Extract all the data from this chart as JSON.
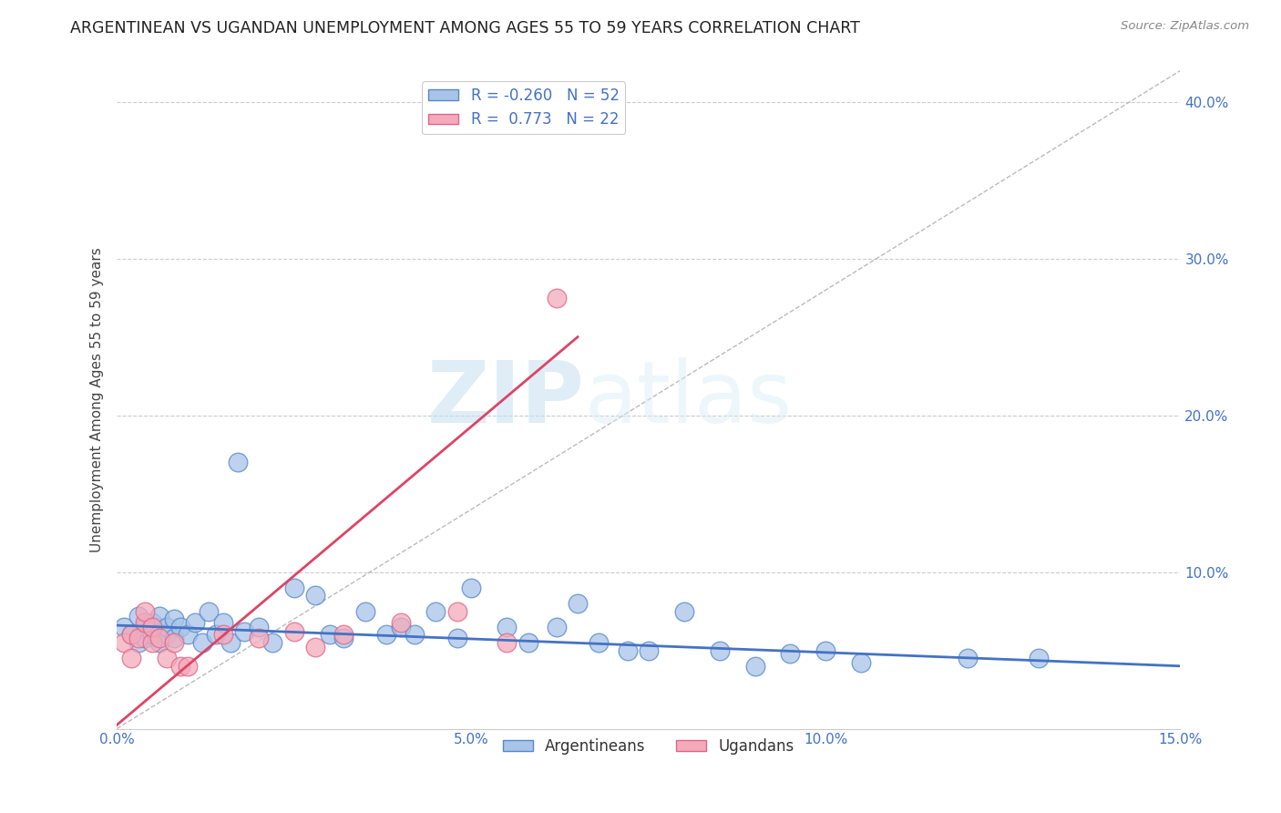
{
  "title": "ARGENTINEAN VS UGANDAN UNEMPLOYMENT AMONG AGES 55 TO 59 YEARS CORRELATION CHART",
  "source": "Source: ZipAtlas.com",
  "ylabel": "Unemployment Among Ages 55 to 59 years",
  "xlim": [
    0.0,
    0.15
  ],
  "ylim": [
    0.0,
    0.42
  ],
  "grid_color": "#cccccc",
  "background_color": "#ffffff",
  "diagonal_line_color": "#bbbbbb",
  "blue_R": -0.26,
  "blue_N": 52,
  "pink_R": 0.773,
  "pink_N": 22,
  "blue_scatter_color": "#a8c4e8",
  "pink_scatter_color": "#f4aabb",
  "blue_edge_color": "#5588cc",
  "pink_edge_color": "#dd6688",
  "blue_line_color": "#4472c4",
  "pink_line_color": "#dd4466",
  "tick_color": "#4472c4",
  "legend_label_blue": "Argentineans",
  "legend_label_pink": "Ugandans",
  "watermark_zip": "ZIP",
  "watermark_atlas": "atlas",
  "blue_scatter_x": [
    0.001,
    0.002,
    0.003,
    0.003,
    0.004,
    0.004,
    0.005,
    0.005,
    0.006,
    0.006,
    0.007,
    0.007,
    0.008,
    0.008,
    0.009,
    0.01,
    0.011,
    0.012,
    0.013,
    0.014,
    0.015,
    0.016,
    0.017,
    0.018,
    0.02,
    0.022,
    0.025,
    0.028,
    0.03,
    0.032,
    0.035,
    0.038,
    0.04,
    0.042,
    0.045,
    0.048,
    0.05,
    0.055,
    0.058,
    0.062,
    0.065,
    0.068,
    0.072,
    0.075,
    0.08,
    0.085,
    0.09,
    0.095,
    0.1,
    0.105,
    0.12,
    0.13
  ],
  "blue_scatter_y": [
    0.065,
    0.06,
    0.055,
    0.072,
    0.065,
    0.058,
    0.06,
    0.068,
    0.055,
    0.072,
    0.06,
    0.065,
    0.058,
    0.07,
    0.065,
    0.06,
    0.068,
    0.055,
    0.075,
    0.06,
    0.068,
    0.055,
    0.17,
    0.062,
    0.065,
    0.055,
    0.09,
    0.085,
    0.06,
    0.058,
    0.075,
    0.06,
    0.065,
    0.06,
    0.075,
    0.058,
    0.09,
    0.065,
    0.055,
    0.065,
    0.08,
    0.055,
    0.05,
    0.05,
    0.075,
    0.05,
    0.04,
    0.048,
    0.05,
    0.042,
    0.045,
    0.045
  ],
  "pink_scatter_x": [
    0.001,
    0.002,
    0.002,
    0.003,
    0.004,
    0.004,
    0.005,
    0.005,
    0.006,
    0.007,
    0.008,
    0.009,
    0.01,
    0.015,
    0.02,
    0.025,
    0.028,
    0.032,
    0.04,
    0.048,
    0.055,
    0.062
  ],
  "pink_scatter_y": [
    0.055,
    0.045,
    0.06,
    0.058,
    0.068,
    0.075,
    0.055,
    0.065,
    0.058,
    0.045,
    0.055,
    0.04,
    0.04,
    0.06,
    0.058,
    0.062,
    0.052,
    0.06,
    0.068,
    0.075,
    0.055,
    0.275
  ]
}
